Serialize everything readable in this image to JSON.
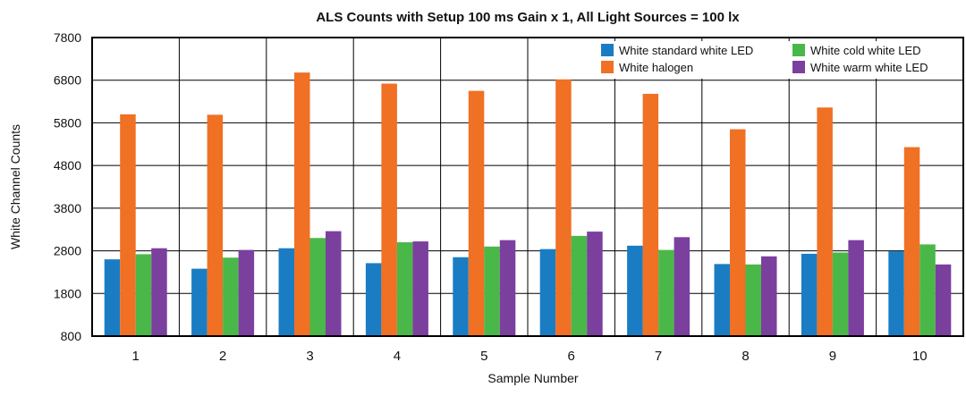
{
  "chart_data": {
    "type": "bar",
    "title": "ALS Counts with Setup 100 ms Gain x 1, All Light Sources = 100 lx",
    "xlabel": "Sample Number",
    "ylabel": "White Channel Counts",
    "ylim": [
      800,
      7800
    ],
    "yticks": [
      800,
      1800,
      2800,
      3800,
      4800,
      5800,
      6800,
      7800
    ],
    "grid": true,
    "legend_position": "top-right",
    "categories": [
      "1",
      "2",
      "3",
      "4",
      "5",
      "6",
      "7",
      "8",
      "9",
      "10"
    ],
    "series": [
      {
        "name": "White standard white LED",
        "color": "#1a7dc4",
        "values": [
          2600,
          2380,
          2860,
          2510,
          2650,
          2840,
          2920,
          2490,
          2730,
          2790
        ]
      },
      {
        "name": "White halogen",
        "color": "#f07024",
        "values": [
          6000,
          5990,
          6980,
          6720,
          6550,
          6820,
          6480,
          5650,
          6160,
          5230
        ]
      },
      {
        "name": "White cold white LED",
        "color": "#4ab848",
        "values": [
          2720,
          2640,
          3100,
          3000,
          2900,
          3150,
          2820,
          2480,
          2760,
          2950
        ]
      },
      {
        "name": "White warm white LED",
        "color": "#7b3f9e",
        "values": [
          2860,
          2820,
          3260,
          3020,
          3050,
          3250,
          3120,
          2670,
          3050,
          2480
        ]
      }
    ]
  }
}
